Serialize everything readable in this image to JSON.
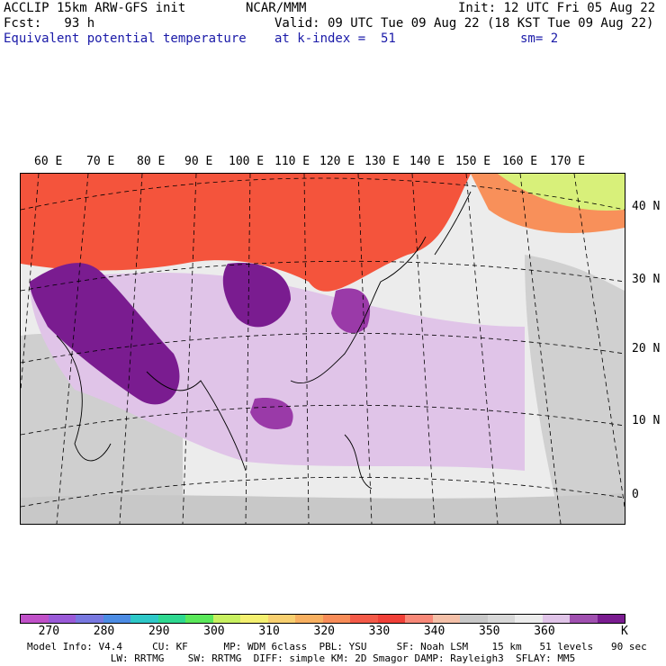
{
  "header": {
    "model": "ACCLIP 15km ARW-GFS init",
    "org": "NCAR/MMM",
    "init": "Init: 12 UTC Fri 05 Aug 22",
    "fcst": "Fcst:   93 h",
    "valid": "Valid: 09 UTC Tue 09 Aug 22 (18 KST Tue 09 Aug 22)",
    "field": "Equivalent potential temperature",
    "level": "at k-index =  51",
    "smooth": "sm= 2"
  },
  "map": {
    "lon_labels": [
      "60 E",
      "70 E",
      "80 E",
      "90 E",
      "100 E",
      "110 E",
      "120 E",
      "130 E",
      "140 E",
      "150 E",
      "160 E",
      "170 E"
    ],
    "lat_labels": [
      "40 N",
      "30 N",
      "20 N",
      "10 N",
      "0"
    ],
    "colors": {
      "warm_band": "#f4543c",
      "orange": "#f8905a",
      "yellow_green": "#d8f07a",
      "light_purple": "#e0c4e8",
      "mid_purple": "#b462c0",
      "dark_purple": "#7a1c90",
      "gray": "#c8c8c8",
      "light_gray": "#ececec"
    }
  },
  "colorbar": {
    "colors": [
      "#c050c8",
      "#9a5ad8",
      "#7878e0",
      "#4c8ce4",
      "#2ec8c8",
      "#2ed890",
      "#5ae85a",
      "#c8f060",
      "#f4f070",
      "#f8d070",
      "#f8b060",
      "#f88c58",
      "#f45a48",
      "#f04038",
      "#f88878",
      "#f4c0a8",
      "#c8c8c8",
      "#d8d8d8",
      "#ececec",
      "#e0c4e8",
      "#a050b0",
      "#7a1c90"
    ],
    "tick_labels": [
      "270",
      "280",
      "290",
      "300",
      "310",
      "320",
      "330",
      "340",
      "350",
      "360"
    ],
    "unit": "K"
  },
  "footer": {
    "line1": "Model Info: V4.4     CU: KF      MP: WDM 6class  PBL: YSU     SF: Noah LSM    15 km   51 levels   90 sec",
    "line2": "              LW: RRTMG    SW: RRTMG  DIFF: simple KM: 2D Smagor DAMP: Rayleigh3  SFLAY: MM5"
  }
}
